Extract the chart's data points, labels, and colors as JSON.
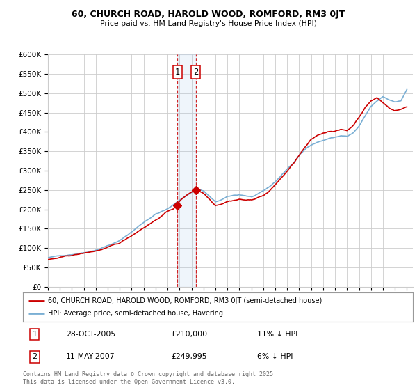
{
  "title": "60, CHURCH ROAD, HAROLD WOOD, ROMFORD, RM3 0JT",
  "subtitle": "Price paid vs. HM Land Registry's House Price Index (HPI)",
  "ylabel_ticks": [
    "£0",
    "£50K",
    "£100K",
    "£150K",
    "£200K",
    "£250K",
    "£300K",
    "£350K",
    "£400K",
    "£450K",
    "£500K",
    "£550K",
    "£600K"
  ],
  "ylim": [
    0,
    600000
  ],
  "ytick_vals": [
    0,
    50000,
    100000,
    150000,
    200000,
    250000,
    300000,
    350000,
    400000,
    450000,
    500000,
    550000,
    600000
  ],
  "legend_line1": "60, CHURCH ROAD, HAROLD WOOD, ROMFORD, RM3 0JT (semi-detached house)",
  "legend_line2": "HPI: Average price, semi-detached house, Havering",
  "annotation1_num": "1",
  "annotation1_date": "28-OCT-2005",
  "annotation1_price": "£210,000",
  "annotation1_hpi": "11% ↓ HPI",
  "annotation2_num": "2",
  "annotation2_date": "11-MAY-2007",
  "annotation2_price": "£249,995",
  "annotation2_hpi": "6% ↓ HPI",
  "footnote": "Contains HM Land Registry data © Crown copyright and database right 2025.\nThis data is licensed under the Open Government Licence v3.0.",
  "line_red_color": "#cc0000",
  "line_blue_color": "#7aafd4",
  "annotation_box_fill": "#ddeeff",
  "annotation_vline_color": "#cc0000",
  "background_color": "#ffffff",
  "grid_color": "#cccccc",
  "vline_x1": 2005.83,
  "vline_x2": 2007.36,
  "price_paid_dates": [
    2005.83,
    2007.36
  ],
  "price_paid_values": [
    210000,
    249995
  ]
}
